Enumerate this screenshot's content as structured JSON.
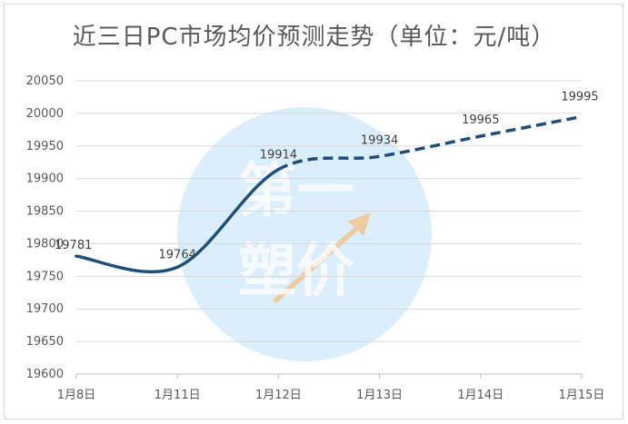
{
  "chart_data": {
    "type": "line",
    "title": "近三日PC市场均价预测走势（单位：元/吨）",
    "categories": [
      "1月8日",
      "1月11日",
      "1月12日",
      "1月13日",
      "1月14日",
      "1月15日"
    ],
    "series": [
      {
        "name": "均价",
        "values": [
          19781,
          19764,
          19914,
          19934,
          19965,
          19995
        ],
        "solid_until_index": 2
      }
    ],
    "ylim": [
      19600,
      20050
    ],
    "yticks": [
      19600,
      19650,
      19700,
      19750,
      19800,
      19850,
      19900,
      19950,
      20000,
      20050
    ],
    "grid": true,
    "legend": "none",
    "line_color": "#1f4e79",
    "watermark": "第一塑价",
    "watermark_color": "#5fb3f0"
  }
}
